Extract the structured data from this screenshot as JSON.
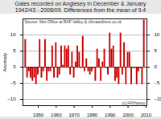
{
  "chart_data": {
    "type": "bar",
    "title": "Gales recorded on Anglesey in December & January",
    "subtitle": "1942/43 - 2008/09. Differences from the mean of 9.4",
    "annotations": [
      "Source: Met Office at RAF Valley & climatedirect.co.uk",
      "p|JARHaway"
    ],
    "ylabel": "Anomaly",
    "x": [
      1943,
      1944,
      1945,
      1946,
      1947,
      1948,
      1949,
      1950,
      1951,
      1952,
      1953,
      1954,
      1955,
      1956,
      1957,
      1958,
      1959,
      1960,
      1961,
      1962,
      1963,
      1964,
      1965,
      1966,
      1967,
      1968,
      1969,
      1970,
      1971,
      1972,
      1973,
      1974,
      1975,
      1976,
      1977,
      1978,
      1979,
      1980,
      1981,
      1982,
      1983,
      1984,
      1985,
      1986,
      1987,
      1988,
      1989,
      1990,
      1991,
      1992,
      1993,
      1994,
      1995,
      1996,
      1997,
      1998,
      1999,
      2000,
      2001,
      2002,
      2003,
      2004,
      2005,
      2006,
      2007,
      2008,
      2009
    ],
    "values": [
      8.6,
      -3.4,
      -1.4,
      -3.4,
      -4.4,
      -3.4,
      -5.4,
      -2.4,
      8.6,
      -3.4,
      -1.4,
      8.6,
      -4.4,
      -1.4,
      -1.4,
      6.6,
      -3.4,
      7.6,
      -3.4,
      -2.4,
      6.6,
      0.6,
      6.6,
      5.6,
      6.6,
      -2.4,
      4.6,
      -3.4,
      1.6,
      6.6,
      4.6,
      -0.4,
      9.6,
      -1.4,
      2.6,
      -1.4,
      -2.4,
      -1.4,
      -0.4,
      -4.4,
      5.6,
      2.6,
      -4.4,
      1.6,
      5.6,
      -0.4,
      -2.4,
      10.6,
      5.6,
      6.6,
      -4.4,
      -3.4,
      -5.4,
      10.6,
      -2.4,
      7.6,
      -5.4,
      4.6,
      4.6,
      -5.4,
      -0.4,
      -0.4,
      -5.4,
      -1.4,
      -0.4,
      -5.4,
      14.6
    ],
    "color": "#cc0000",
    "xlim": [
      1941.5,
      2010.5
    ],
    "xticks": [
      1950,
      1960,
      1970,
      1980,
      1990,
      2000,
      2010
    ],
    "ylim": [
      -12,
      15
    ],
    "yticks": [
      -10,
      -5,
      0,
      5,
      10
    ],
    "grid": true
  }
}
